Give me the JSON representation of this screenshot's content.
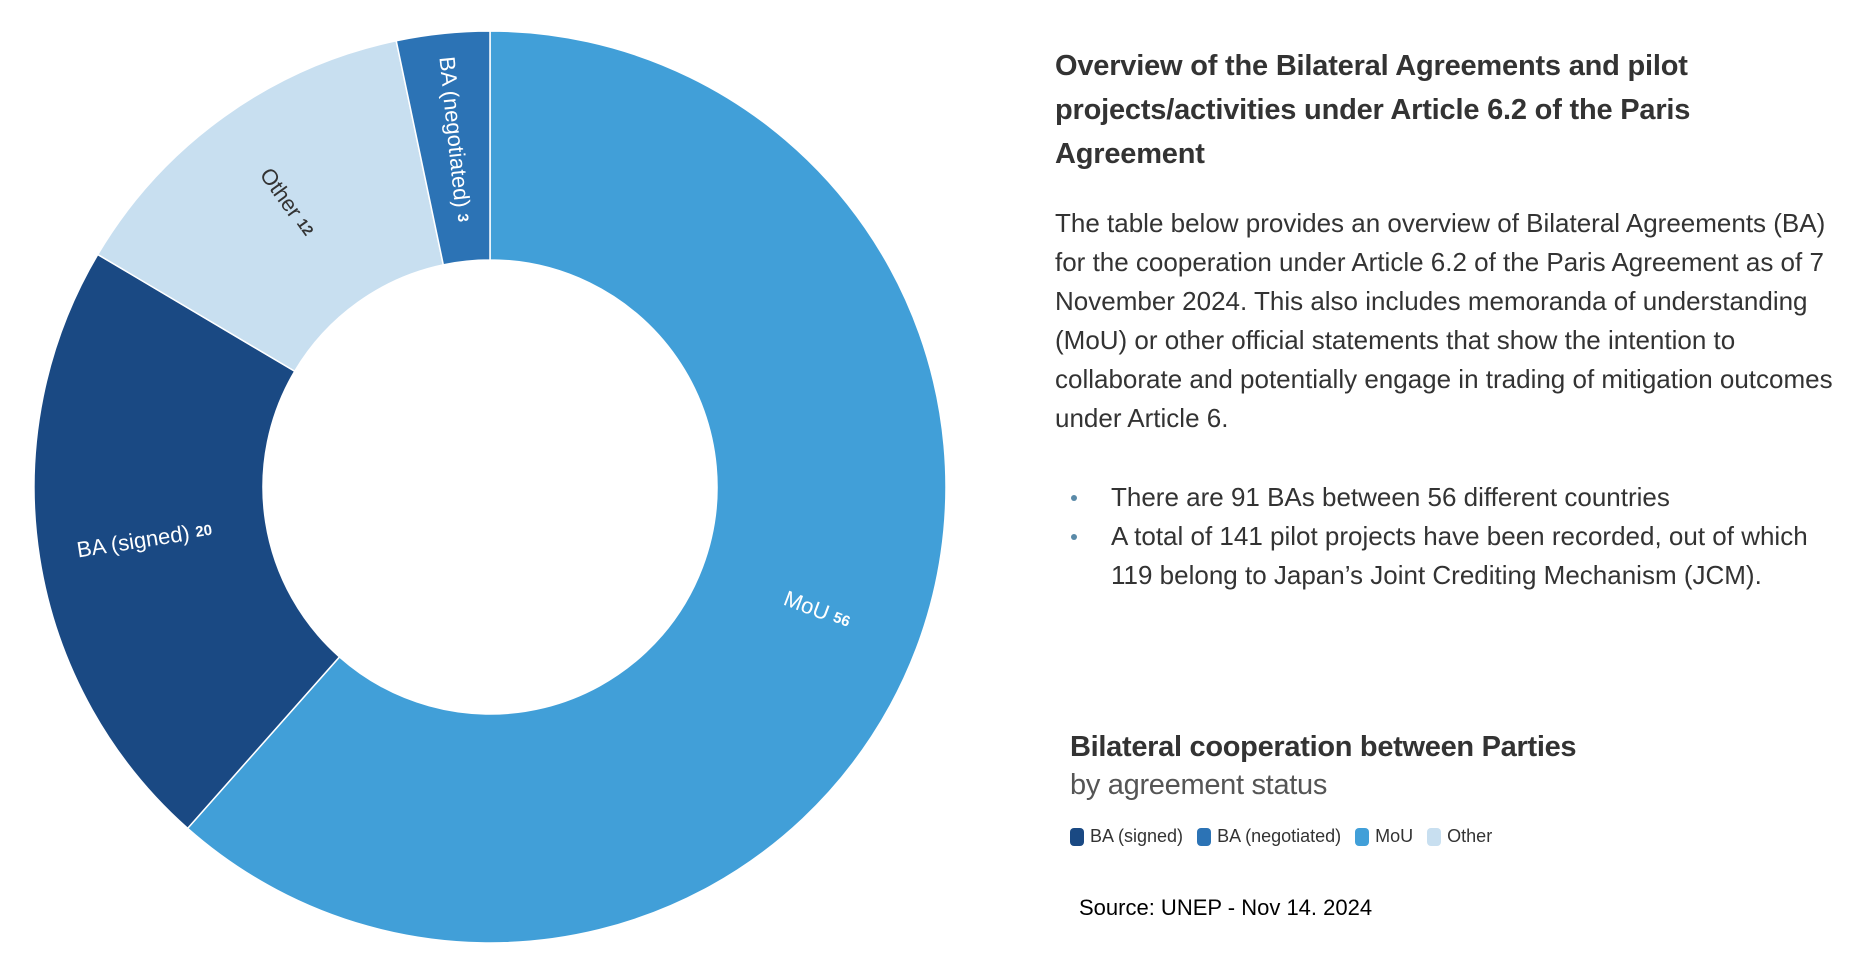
{
  "text_panel": {
    "heading": "Overview of the Bilateral Agreements and pilot projects/activities under Article 6.2 of the Paris Agreement",
    "paragraph": "The table below provides an overview of Bilateral Agreements (BA) for the cooperation under Article 6.2 of the Paris Agreement as of 7 November 2024. This also includes memoranda of understanding (MoU) or other official statements that show the intention to collaborate and potentially engage in trading of mitigation outcomes under Article 6.",
    "bullets": [
      "There are 91 BAs between 56 different countries",
      "A total of 141 pilot projects have been recorded, out of which 119 belong to Japan’s Joint Crediting Mechanism (JCM)."
    ]
  },
  "source": "Source: UNEP - Nov 14. 2024",
  "chart_data": {
    "type": "pie",
    "donut": true,
    "title": "Bilateral cooperation between Parties",
    "subtitle": "by agreement status",
    "legend_position": "bottom",
    "categories": [
      "MoU",
      "BA (signed)",
      "Other",
      "BA (negotiated)"
    ],
    "values": [
      56,
      20,
      12,
      3
    ],
    "colors": [
      "#419fd8",
      "#1a4983",
      "#c8dff0",
      "#2c73b5"
    ],
    "slice_label_colors": [
      "#ffffff",
      "#ffffff",
      "#333333",
      "#ffffff"
    ],
    "legend": [
      {
        "label": "BA (signed)",
        "color": "#1a4983"
      },
      {
        "label": "BA (negotiated)",
        "color": "#2c73b5"
      },
      {
        "label": "MoU",
        "color": "#419fd8"
      },
      {
        "label": "Other",
        "color": "#c8dff0"
      }
    ]
  }
}
